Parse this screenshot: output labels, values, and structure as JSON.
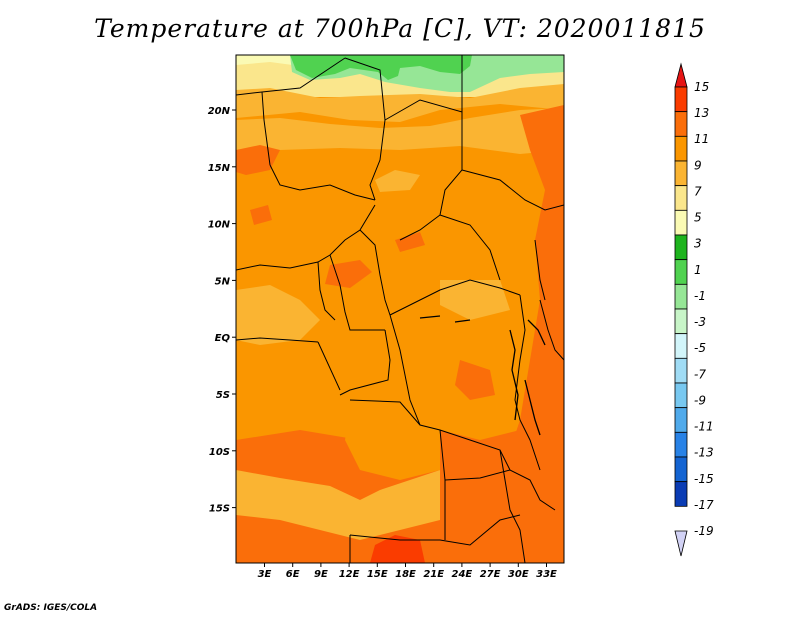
{
  "title": "Temperature at 700hPa [C], VT: 2020011815",
  "credit": "GrADS: IGES/COLA",
  "axes": {
    "lon_ticks": [
      "3E",
      "6E",
      "9E",
      "12E",
      "15E",
      "18E",
      "21E",
      "24E",
      "27E",
      "30E",
      "33E"
    ],
    "lat_ticks": [
      "20N",
      "15N",
      "10N",
      "5N",
      "EQ",
      "5S",
      "10S",
      "15S"
    ]
  },
  "colorbar": {
    "labels": [
      "15",
      "13",
      "11",
      "9",
      "7",
      "5",
      "3",
      "1",
      "-1",
      "-3",
      "-5",
      "-7",
      "-9",
      "-11",
      "-13",
      "-15",
      "-17",
      "-19"
    ],
    "colors": [
      "#f01e14",
      "#fa3c00",
      "#fa6e0a",
      "#fa9600",
      "#fab432",
      "#fae68c",
      "#fafab4",
      "#1eb41e",
      "#50d250",
      "#96e696",
      "#c8f5c8",
      "#d2f5fa",
      "#a0dcf5",
      "#78c8f0",
      "#50aaeb",
      "#2882e6",
      "#1464d2",
      "#0a3cb4",
      "#000078"
    ],
    "top_arrow_color": "#e61414",
    "bottom_arrow_color": "#d2d2f5"
  }
}
